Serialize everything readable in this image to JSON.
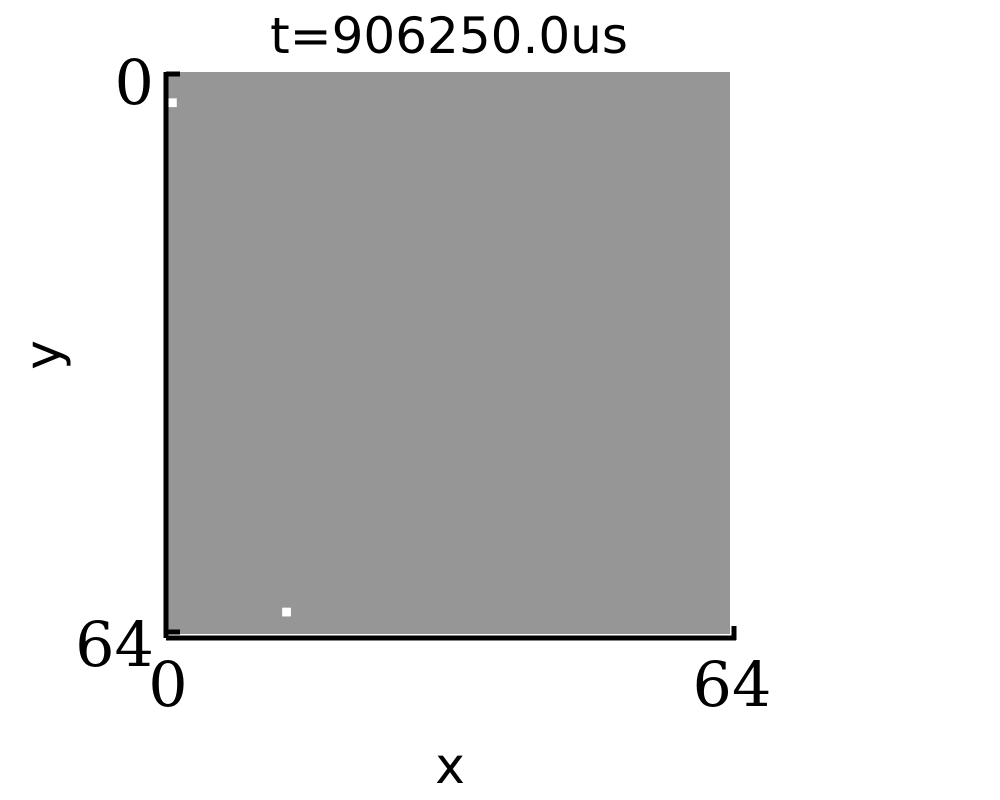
{
  "chart_data": {
    "type": "heatmap",
    "title": "t=906250.0us",
    "xlabel": "x",
    "ylabel": "y",
    "xlim": [
      0,
      64
    ],
    "ylim": [
      64,
      0
    ],
    "x_tick_labels": [
      "0",
      "64"
    ],
    "y_tick_labels": [
      "0",
      "64"
    ],
    "background_color": "#969696",
    "points": [
      {
        "x": 0.5,
        "y": 3.5,
        "value": 1
      },
      {
        "x": 13.5,
        "y": 61.5,
        "value": 1
      }
    ],
    "point_color": "#ffffff",
    "grid": false
  }
}
